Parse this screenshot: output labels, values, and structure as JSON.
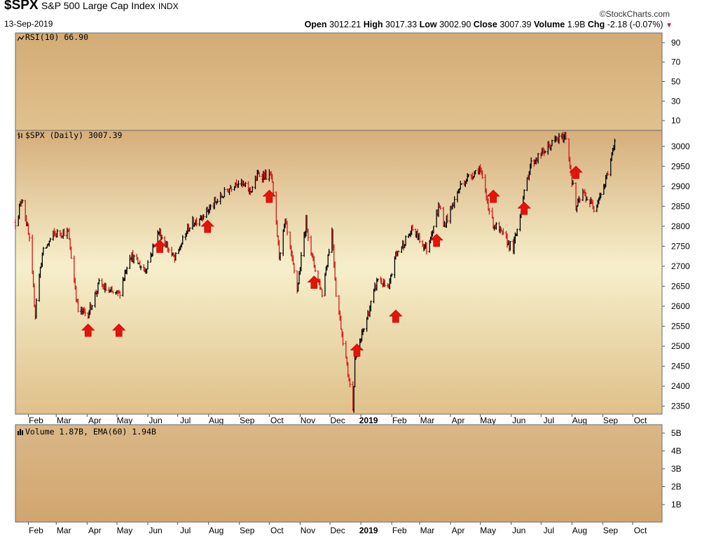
{
  "header": {
    "symbol": "$SPX",
    "name": "S&P 500 Large Cap Index",
    "exchange": "INDX",
    "date": "13-Sep-2019",
    "brand": "©StockCharts.com",
    "quote": {
      "open_label": "Open",
      "open": "3012.21",
      "high_label": "High",
      "high": "3017.33",
      "low_label": "Low",
      "low": "3002.90",
      "close_label": "Close",
      "close": "3007.39",
      "volume_label": "Volume",
      "volume": "1.9B",
      "chg_label": "Chg",
      "chg": "-2.18 (-0.07%)"
    }
  },
  "colors": {
    "panel_top": "#d6ae7b",
    "panel_mid": "#f6efcb",
    "up_bar": "#000000",
    "down_bar": "#d11a1a",
    "arrow": "#e8120b",
    "rsi_line": "#000000"
  },
  "rsi_panel": {
    "label": "RSI(10) 66.90",
    "ticks": [
      "90",
      "70",
      "50",
      "30",
      "10"
    ]
  },
  "price_panel": {
    "label": "$SPX (Daily) 3007.39",
    "ticks": [
      "3000",
      "2950",
      "2900",
      "2850",
      "2800",
      "2750",
      "2700",
      "2650",
      "2600",
      "2550",
      "2500",
      "2450",
      "2400",
      "2350"
    ]
  },
  "volume_panel": {
    "label": "Volume 1.87B, EMA(60) 1.94B",
    "ticks": [
      "5B",
      "4B",
      "3B",
      "2B",
      "1B"
    ]
  },
  "x_axis_labels": [
    "Feb",
    "Mar",
    "Apr",
    "May",
    "Jun",
    "Jul",
    "Aug",
    "Sep",
    "Oct",
    "Nov",
    "Dec",
    "2019",
    "Feb",
    "Mar",
    "Apr",
    "May",
    "Jun",
    "Jul",
    "Aug",
    "Sep",
    "Oct"
  ],
  "chart_data": {
    "type": "ohlc",
    "title": "$SPX (Daily) 3007.39",
    "x_type": "date",
    "x_range": [
      "2018-01-19",
      "2019-10-08"
    ],
    "ylim": [
      2330,
      3040
    ],
    "y_ticks": [
      3000,
      2950,
      2900,
      2850,
      2800,
      2750,
      2700,
      2650,
      2600,
      2550,
      2500,
      2450,
      2400,
      2350
    ],
    "grid": false,
    "price_path": [
      [
        "2018-01-19",
        2810
      ],
      [
        "2018-01-26",
        2872
      ],
      [
        "2018-02-02",
        2762
      ],
      [
        "2018-02-08",
        2581
      ],
      [
        "2018-02-09",
        2619
      ],
      [
        "2018-02-15",
        2731
      ],
      [
        "2018-02-26",
        2779
      ],
      [
        "2018-03-09",
        2786
      ],
      [
        "2018-03-13",
        2783
      ],
      [
        "2018-03-23",
        2588
      ],
      [
        "2018-04-02",
        2582
      ],
      [
        "2018-04-13",
        2656
      ],
      [
        "2018-04-24",
        2634
      ],
      [
        "2018-05-03",
        2629
      ],
      [
        "2018-05-14",
        2730
      ],
      [
        "2018-05-29",
        2689
      ],
      [
        "2018-06-12",
        2786
      ],
      [
        "2018-06-28",
        2716
      ],
      [
        "2018-07-12",
        2798
      ],
      [
        "2018-08-08",
        2858
      ],
      [
        "2018-08-29",
        2914
      ],
      [
        "2018-09-12",
        2888
      ],
      [
        "2018-09-20",
        2930
      ],
      [
        "2018-10-03",
        2925
      ],
      [
        "2018-10-11",
        2728
      ],
      [
        "2018-10-17",
        2809
      ],
      [
        "2018-10-29",
        2641
      ],
      [
        "2018-11-07",
        2813
      ],
      [
        "2018-11-13",
        2722
      ],
      [
        "2018-11-23",
        2632
      ],
      [
        "2018-12-03",
        2790
      ],
      [
        "2018-12-07",
        2633
      ],
      [
        "2018-12-24",
        2351
      ],
      [
        "2018-12-26",
        2467
      ],
      [
        "2019-01-10",
        2596
      ],
      [
        "2019-01-18",
        2670
      ],
      [
        "2019-01-29",
        2640
      ],
      [
        "2019-02-04",
        2724
      ],
      [
        "2019-02-22",
        2792
      ],
      [
        "2019-03-08",
        2743
      ],
      [
        "2019-03-21",
        2854
      ],
      [
        "2019-03-25",
        2798
      ],
      [
        "2019-04-12",
        2907
      ],
      [
        "2019-04-30",
        2946
      ],
      [
        "2019-05-13",
        2811
      ],
      [
        "2019-05-31",
        2752
      ],
      [
        "2019-06-03",
        2744
      ],
      [
        "2019-06-20",
        2954
      ],
      [
        "2019-07-15",
        3014
      ],
      [
        "2019-07-26",
        3025
      ],
      [
        "2019-08-05",
        2844
      ],
      [
        "2019-08-12",
        2883
      ],
      [
        "2019-08-23",
        2847
      ],
      [
        "2019-09-03",
        2906
      ],
      [
        "2019-09-13",
        3007
      ]
    ],
    "last_bar": {
      "date": "2019-09-13",
      "open": 3012.21,
      "high": 3017.33,
      "low": 3002.9,
      "close": 3007.39,
      "volume": "1.9B",
      "change": -2.18,
      "change_pct": -0.07
    },
    "annotations": {
      "type": "up_arrow",
      "points": [
        [
          "2018-04-02",
          2540
        ],
        [
          "2018-05-03",
          2540
        ],
        [
          "2018-06-13",
          2750
        ],
        [
          "2018-07-31",
          2800
        ],
        [
          "2018-10-01",
          2875
        ],
        [
          "2018-11-15",
          2660
        ],
        [
          "2018-12-28",
          2490
        ],
        [
          "2019-02-05",
          2575
        ],
        [
          "2019-03-18",
          2765
        ],
        [
          "2019-05-14",
          2875
        ],
        [
          "2019-06-14",
          2845
        ],
        [
          "2019-08-05",
          2935
        ]
      ]
    },
    "rsi": {
      "label": "RSI(10)",
      "last": 66.9,
      "ylim": [
        0,
        100
      ],
      "ticks": [
        90,
        70,
        50,
        30,
        10
      ]
    },
    "volume": {
      "label": "Volume",
      "last": "1.87B",
      "ema_label": "EMA(60)",
      "ema": "1.94B",
      "ticks": [
        "5B",
        "4B",
        "3B",
        "2B",
        "1B"
      ]
    }
  }
}
